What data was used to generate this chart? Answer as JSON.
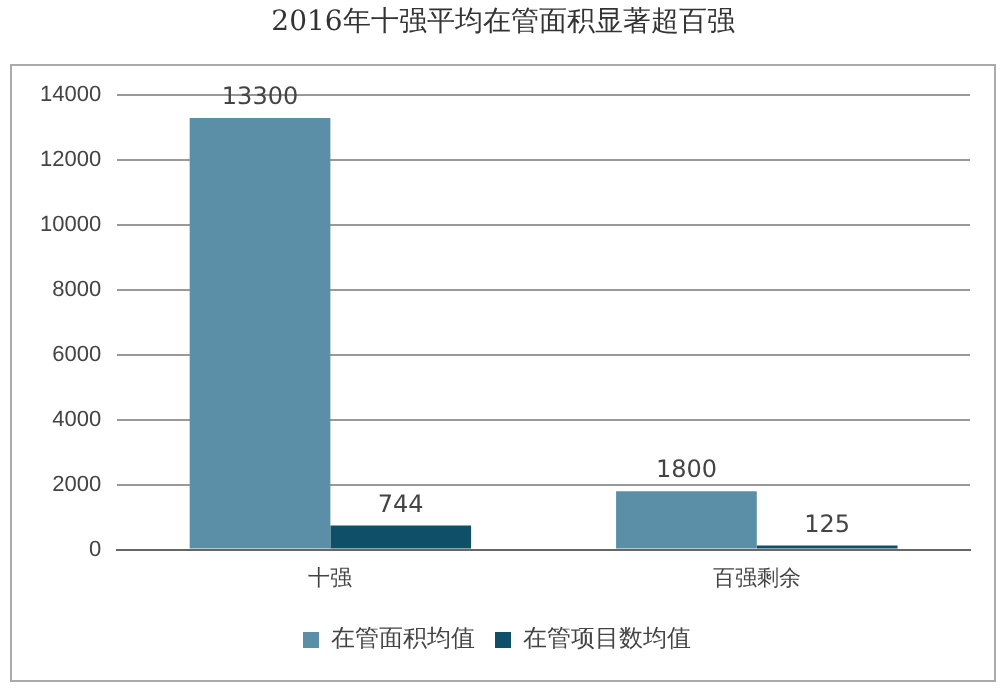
{
  "chart_data": {
    "type": "bar",
    "title": "2016年十强平均在管面积显著超百强",
    "categories": [
      "十强",
      "百强剩余"
    ],
    "series": [
      {
        "name": "在管面积均值",
        "color": "#5b8fa8",
        "values": [
          13300,
          1800
        ]
      },
      {
        "name": "在管项目数均值",
        "color": "#0f5068",
        "values": [
          744,
          125
        ]
      }
    ],
    "ylim": [
      0,
      14000
    ],
    "yticks": [
      0,
      2000,
      4000,
      6000,
      8000,
      10000,
      12000,
      14000
    ],
    "grid": "y",
    "legend": "bottom",
    "data_labels": true
  }
}
